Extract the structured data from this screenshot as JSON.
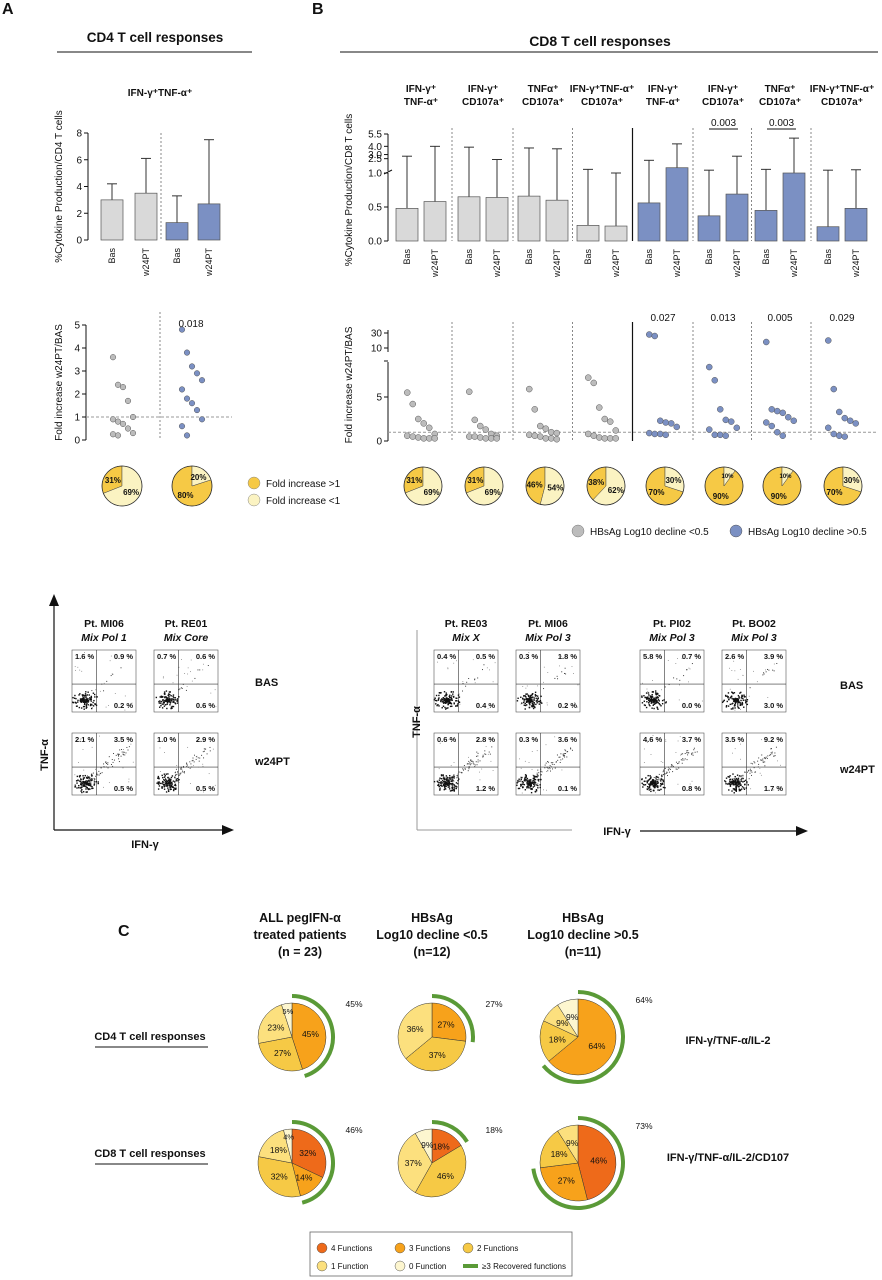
{
  "panels": {
    "A": "A",
    "B": "B",
    "C": "C"
  },
  "panelA": {
    "title": "CD4 T cell responses",
    "subtitle": "IFN-γ⁺TNF-α⁺",
    "bar_ylabel": "%Cytokine Production/CD4 T cells",
    "fold_ylabel": "Fold increase w24PT/BAS",
    "pvalue": "0.018"
  },
  "panelB": {
    "title": "CD8 T cell responses",
    "bar_ylabel": "%Cytokine Production/CD8 T cells",
    "fold_ylabel": "Fold increase w24PT/BAS",
    "groups": [
      {
        "l1": "IFN-γ⁺",
        "l2": "TNF-α⁺"
      },
      {
        "l1": "IFN-γ⁺",
        "l2": "CD107a⁺"
      },
      {
        "l1": "TNFα⁺",
        "l2": "CD107a⁺"
      },
      {
        "l1": "IFN-γ⁺TNF-α⁺",
        "l2": "CD107a⁺"
      },
      {
        "l1": "IFN-γ⁺",
        "l2": "TNF-α⁺"
      },
      {
        "l1": "IFN-γ⁺",
        "l2": "CD107a⁺"
      },
      {
        "l1": "TNFα⁺",
        "l2": "CD107a⁺"
      },
      {
        "l1": "IFN-γ⁺TNF-α⁺",
        "l2": "CD107a⁺"
      }
    ],
    "bar_pvalues": [
      "0.003",
      "0.003"
    ],
    "fold_pvalues": [
      "0.027",
      "0.013",
      "0.005",
      "0.029"
    ]
  },
  "legend": {
    "fold_gt1": "Fold increase >1",
    "fold_lt1": "Fold increase <1",
    "hbsag_lt": "HBsAg Log10 decline <0.5",
    "hbsag_gt": "HBsAg Log10 decline >0.5"
  },
  "flow": {
    "xlabel": "IFN-γ",
    "ylabel": "TNF-α",
    "row1": "BAS",
    "row2": "w24PT",
    "patients": [
      {
        "name": "Pt. MI06",
        "mix": "Mix Pol 1",
        "bas": [
          "1.6 %",
          "0.9 %",
          "0.2 %"
        ],
        "w24": [
          "2.1 %",
          "3.5 %",
          "0.5 %"
        ]
      },
      {
        "name": "Pt. RE01",
        "mix": "Mix  Core",
        "bas": [
          "0.7 %",
          "0.6 %",
          "0.6 %"
        ],
        "w24": [
          "1.0 %",
          "2.9 %",
          "0.5 %"
        ]
      },
      {
        "name": "Pt. RE03",
        "mix": "Mix X",
        "bas": [
          "0.4 %",
          "0.5 %",
          "0.4 %"
        ],
        "w24": [
          "0.6 %",
          "2.8 %",
          "1.2 %"
        ]
      },
      {
        "name": "Pt. MI06",
        "mix": "Mix Pol 3",
        "bas": [
          "0.3 %",
          "1.8 %",
          "0.2 %"
        ],
        "w24": [
          "0.3 %",
          "3.6 %",
          "0.1 %"
        ]
      },
      {
        "name": "Pt. PI02",
        "mix": "Mix Pol 3",
        "bas": [
          "5.8 %",
          "0.7 %",
          "0.0 %"
        ],
        "w24": [
          "4.6 %",
          "3.7 %",
          "0.8 %"
        ]
      },
      {
        "name": "Pt. BO02",
        "mix": "Mix Pol 3",
        "bas": [
          "2.6 %",
          "3.9 %",
          "3.0 %"
        ],
        "w24": [
          "3.5 %",
          "9.2 %",
          "1.7 %"
        ]
      }
    ]
  },
  "panelC": {
    "cols": [
      {
        "l1": "ALL pegIFN-α",
        "l2": "treated patients",
        "l3": "(n = 23)"
      },
      {
        "l1": "HBsAg",
        "l2": "Log10 decline <0.5",
        "l3": "(n=12)"
      },
      {
        "l1": "HBsAg",
        "l2": "Log10 decline >0.5",
        "l3": "(n=11)"
      }
    ],
    "rows": [
      "CD4 T cell responses",
      "CD8 T cell responses"
    ],
    "row_right": [
      "IFN-γ/TNF-α/IL-2",
      "IFN-γ/TNF-α/IL-2/CD107"
    ],
    "legend": [
      "4 Functions",
      "3 Functions",
      "2 Functions",
      "1 Function",
      "0 Function",
      "≥3 Recovered functions"
    ]
  },
  "chart_data": [
    {
      "type": "bar",
      "title": "IFN-γ⁺TNF-α⁺",
      "ylabel": "%Cytokine Production/CD4 T cells",
      "ylim": [
        0,
        8
      ],
      "categories": [
        "Bas",
        "w24PT",
        "Bas",
        "w24PT"
      ],
      "values": [
        3.0,
        3.5,
        1.3,
        2.7
      ],
      "error_upper": [
        4.2,
        6.1,
        3.3,
        7.5
      ],
      "colors": [
        "#d9d9d9",
        "#d9d9d9",
        "#7b90c3",
        "#7b90c3"
      ]
    },
    {
      "type": "bar",
      "ylabel": "%Cytokine Production/CD8 T cells",
      "yticks": [
        "0.0",
        "0.5",
        "1.0",
        "2.5",
        "3.0",
        "4.0",
        "5.5"
      ],
      "categories": [
        "Bas",
        "w24PT",
        "Bas",
        "w24PT",
        "Bas",
        "w24PT",
        "Bas",
        "w24PT",
        "Bas",
        "w24PT",
        "Bas",
        "w24PT",
        "Bas",
        "w24PT",
        "Bas",
        "w24PT"
      ],
      "values": [
        0.48,
        0.58,
        0.65,
        0.64,
        0.66,
        0.6,
        0.23,
        0.22,
        0.56,
        1.4,
        0.37,
        0.69,
        0.45,
        1.0,
        0.21,
        0.48
      ],
      "error_upper": [
        2.8,
        4.0,
        3.9,
        2.4,
        3.8,
        3.7,
        1.2,
        1.0,
        2.3,
        4.3,
        1.1,
        2.8,
        1.2,
        5.0,
        1.1,
        1.15
      ]
    },
    {
      "type": "scatter",
      "ylabel": "Fold increase w24PT/BAS",
      "ylim": [
        0,
        5
      ],
      "series": [
        {
          "values": [
            3.6,
            2.4,
            2.3,
            1.7,
            1.0,
            0.9,
            0.8,
            0.7,
            0.5,
            0.3,
            0.25,
            0.2
          ]
        },
        {
          "values": [
            4.8,
            3.8,
            3.2,
            2.9,
            2.6,
            2.2,
            1.8,
            1.6,
            1.3,
            0.9,
            0.6,
            0.2
          ]
        }
      ]
    },
    {
      "type": "scatter",
      "ylabel": "Fold increase w24PT/BAS",
      "yticks": [
        "0",
        "5",
        "10",
        "30"
      ],
      "groups": [
        [
          5.5,
          4.2,
          2.5,
          2.0,
          1.5,
          0.8,
          0.6,
          0.5,
          0.4,
          0.3,
          0.3,
          0.3
        ],
        [
          5.6,
          2.4,
          1.7,
          1.3,
          0.8,
          0.6,
          0.5,
          0.5,
          0.4,
          0.3,
          0.3,
          0.3
        ],
        [
          5.9,
          3.6,
          1.7,
          1.4,
          1.0,
          0.9,
          0.7,
          0.6,
          0.5,
          0.3,
          0.3,
          0.2
        ],
        [
          7.2,
          6.6,
          3.8,
          2.5,
          2.2,
          1.2,
          0.8,
          0.6,
          0.4,
          0.3,
          0.3,
          0.3
        ],
        [
          28,
          26,
          2.3,
          2.1,
          2.0,
          1.6,
          0.9,
          0.8,
          0.8,
          0.7
        ],
        [
          8.4,
          6.9,
          3.6,
          2.4,
          2.2,
          1.5,
          1.3,
          0.7,
          0.7,
          0.6
        ],
        [
          18,
          3.6,
          3.4,
          3.2,
          2.7,
          2.3,
          2.1,
          1.7,
          1.0,
          0.6
        ],
        [
          20,
          5.9,
          3.3,
          2.6,
          2.3,
          2.0,
          1.5,
          0.8,
          0.6,
          0.5
        ]
      ]
    },
    {
      "type": "pie",
      "name": "fold fraction",
      "slices": [
        {
          "gt1": 31,
          "lt1": 69
        },
        {
          "gt1": 80,
          "lt1": 20
        },
        {
          "gt1": 31,
          "lt1": 69
        },
        {
          "gt1": 31,
          "lt1": 69
        },
        {
          "gt1": 46,
          "lt1": 54
        },
        {
          "gt1": 38,
          "lt1": 62
        },
        {
          "gt1": 70,
          "lt1": 30
        },
        {
          "gt1": 90,
          "lt1": 10
        },
        {
          "gt1": 90,
          "lt1": 10
        },
        {
          "gt1": 70,
          "lt1": 30
        }
      ]
    },
    {
      "type": "pie",
      "name": "polyfunctionality",
      "slices": [
        [
          0,
          45,
          27,
          23,
          5
        ],
        [
          0,
          27,
          37,
          36,
          0
        ],
        [
          0,
          64,
          18,
          9,
          9
        ],
        [
          32,
          14,
          32,
          18,
          4
        ],
        [
          18,
          0,
          46,
          37,
          9
        ],
        [
          46,
          27,
          18,
          9,
          0
        ]
      ],
      "recovered": [
        "45%",
        "27%",
        "64%",
        "46%",
        "18%",
        "73%"
      ]
    }
  ]
}
